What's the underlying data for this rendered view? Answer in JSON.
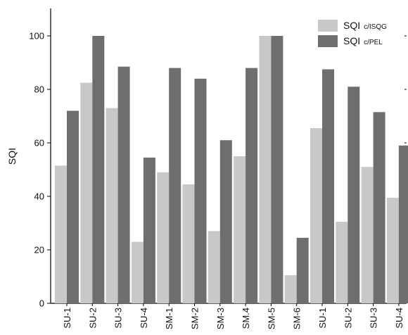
{
  "chart_data": {
    "type": "bar",
    "ylabel": "SQI",
    "xlabel": "",
    "ylim": [
      0,
      110
    ],
    "yticks": [
      0,
      20,
      40,
      60,
      80,
      100
    ],
    "grid": false,
    "legend_position": "top-right",
    "categories": [
      "SU-1",
      "SU-2",
      "SU-3",
      "SU-4",
      "SM-1",
      "SM-2",
      "SM-3",
      "SM.4",
      "SM-5",
      "SM-6",
      "SU-1",
      "SU-2",
      "SU-3",
      "SU-4"
    ],
    "series": [
      {
        "name": "SQI c/ISQG",
        "legend_main": "SQI",
        "legend_sub": "c/ISQG",
        "color": "#c8c8c8",
        "values": [
          51.5,
          82.5,
          73,
          23,
          49,
          44.5,
          27,
          55,
          100,
          10.5,
          65.5,
          30.5,
          51,
          39.5
        ]
      },
      {
        "name": "SQI c/PEL",
        "legend_main": "SQI",
        "legend_sub": "c/PEL",
        "color": "#6e6e6e",
        "values": [
          72,
          100,
          88.5,
          54.5,
          88,
          84,
          61,
          88,
          100,
          24.5,
          87.5,
          81,
          71.5,
          59
        ]
      }
    ]
  }
}
